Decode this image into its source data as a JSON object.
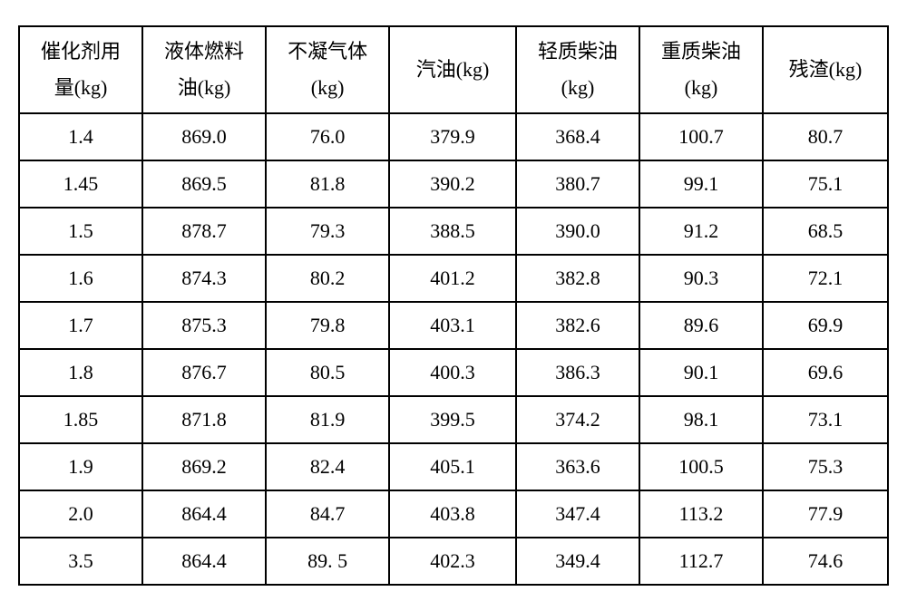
{
  "table": {
    "type": "table",
    "background_color": "#ffffff",
    "border_color": "#000000",
    "text_color": "#000000",
    "font_family": "SimSun",
    "header_fontsize": 22,
    "cell_fontsize": 22,
    "border_width": 2,
    "columns": [
      {
        "label_line1": "催化剂用",
        "label_line2": "量(kg)",
        "width": "14.2%"
      },
      {
        "label_line1": "液体燃料",
        "label_line2": "油(kg)",
        "width": "14.2%"
      },
      {
        "label_line1": "不凝气体",
        "label_line2": "(kg)",
        "width": "14.2%"
      },
      {
        "label_line1": "汽油(kg)",
        "label_line2": "",
        "width": "14.6%"
      },
      {
        "label_line1": "轻质柴油",
        "label_line2": "(kg)",
        "width": "14.2%"
      },
      {
        "label_line1": "重质柴油",
        "label_line2": "(kg)",
        "width": "14.2%"
      },
      {
        "label_line1": "残渣(kg)",
        "label_line2": "",
        "width": "14.4%"
      }
    ],
    "rows": [
      [
        "1.4",
        "869.0",
        "76.0",
        "379.9",
        "368.4",
        "100.7",
        "80.7"
      ],
      [
        "1.45",
        "869.5",
        "81.8",
        "390.2",
        "380.7",
        "99.1",
        "75.1"
      ],
      [
        "1.5",
        "878.7",
        "79.3",
        "388.5",
        "390.0",
        "91.2",
        "68.5"
      ],
      [
        "1.6",
        "874.3",
        "80.2",
        "401.2",
        "382.8",
        "90.3",
        "72.1"
      ],
      [
        "1.7",
        "875.3",
        "79.8",
        "403.1",
        "382.6",
        "89.6",
        "69.9"
      ],
      [
        "1.8",
        "876.7",
        "80.5",
        "400.3",
        "386.3",
        "90.1",
        "69.6"
      ],
      [
        "1.85",
        "871.8",
        "81.9",
        "399.5",
        "374.2",
        "98.1",
        "73.1"
      ],
      [
        "1.9",
        "869.2",
        "82.4",
        "405.1",
        "363.6",
        "100.5",
        "75.3"
      ],
      [
        "2.0",
        "864.4",
        "84.7",
        "403.8",
        "347.4",
        "113.2",
        "77.9"
      ],
      [
        "3.5",
        "864.4",
        "89. 5",
        "402.3",
        "349.4",
        "112.7",
        "74.6"
      ]
    ]
  }
}
